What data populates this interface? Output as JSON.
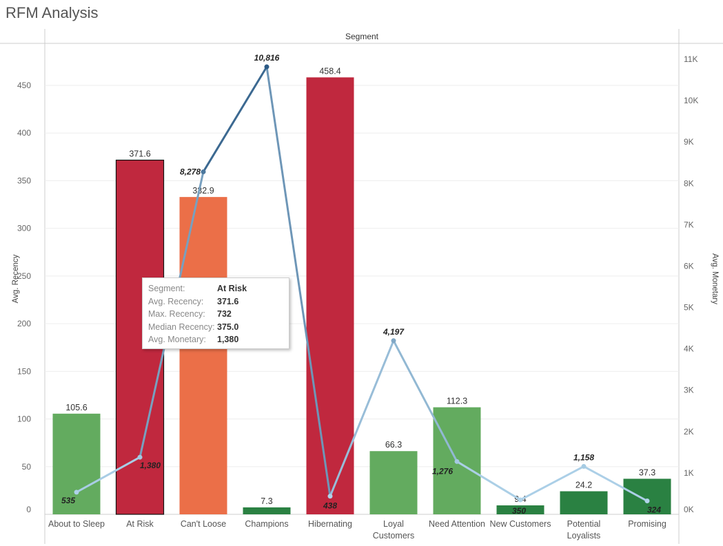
{
  "title": "RFM Analysis",
  "chart_data": {
    "type": "bar",
    "header": "Segment",
    "categories": [
      "About to Sleep",
      "At Risk",
      "Can't Loose",
      "Champions",
      "Hibernating",
      "Loyal Customers",
      "Need Attention",
      "New Customers",
      "Potential Loyalists",
      "Promising"
    ],
    "category_lines": [
      [
        "About to Sleep"
      ],
      [
        "At Risk"
      ],
      [
        "Can't Loose"
      ],
      [
        "Champions"
      ],
      [
        "Hibernating"
      ],
      [
        "Loyal",
        "Customers"
      ],
      [
        "Need Attention"
      ],
      [
        "New Customers"
      ],
      [
        "Potential",
        "Loyalists"
      ],
      [
        "Promising"
      ]
    ],
    "bar_series": {
      "name": "Avg. Recency",
      "values": [
        105.6,
        371.6,
        332.9,
        7.3,
        458.4,
        66.3,
        112.3,
        9.4,
        24.2,
        37.3
      ],
      "labels": [
        "105.6",
        "371.6",
        "332.9",
        "7.3",
        "458.4",
        "66.3",
        "112.3",
        "9.4",
        "24.2",
        "37.3"
      ],
      "colors": [
        "#63ab5f",
        "#c0283e",
        "#eb6f48",
        "#2a8142",
        "#c0283e",
        "#63ab5f",
        "#63ab5f",
        "#2a8142",
        "#2a8142",
        "#2a8142"
      ]
    },
    "line_series": {
      "name": "Avg. Monetary",
      "type": "line",
      "values": [
        535,
        1380,
        8278,
        10816,
        438,
        4197,
        1276,
        350,
        1158,
        324
      ],
      "labels": [
        "535",
        "1,380",
        "8,278",
        "10,816",
        "438",
        "4,197",
        "1,276",
        "350",
        "1,158",
        "324"
      ],
      "color_range": [
        "#b5d8ee",
        "#2c5a85"
      ]
    },
    "ylabel": "Avg. Recency",
    "ylim": [
      0,
      480
    ],
    "yticks": [
      0,
      50,
      100,
      150,
      200,
      250,
      300,
      350,
      400,
      450
    ],
    "y2label": "Avg. Monetary",
    "y2lim": [
      0,
      11500
    ],
    "y2ticks": [
      0,
      1000,
      2000,
      3000,
      4000,
      5000,
      6000,
      7000,
      8000,
      9000,
      10000,
      11000
    ],
    "y2tick_labels": [
      "0K",
      "1K",
      "2K",
      "3K",
      "4K",
      "5K",
      "6K",
      "7K",
      "8K",
      "9K",
      "10K",
      "11K"
    ],
    "grid": true,
    "selected": "At Risk"
  },
  "tooltip": {
    "rows": [
      {
        "key": "Segment:",
        "value": "At Risk"
      },
      {
        "key": "Avg. Recency:",
        "value": "371.6"
      },
      {
        "key": "Max. Recency:",
        "value": "732"
      },
      {
        "key": "Median Recency:",
        "value": "375.0"
      },
      {
        "key": "Avg. Monetary:",
        "value": "1,380"
      }
    ]
  }
}
